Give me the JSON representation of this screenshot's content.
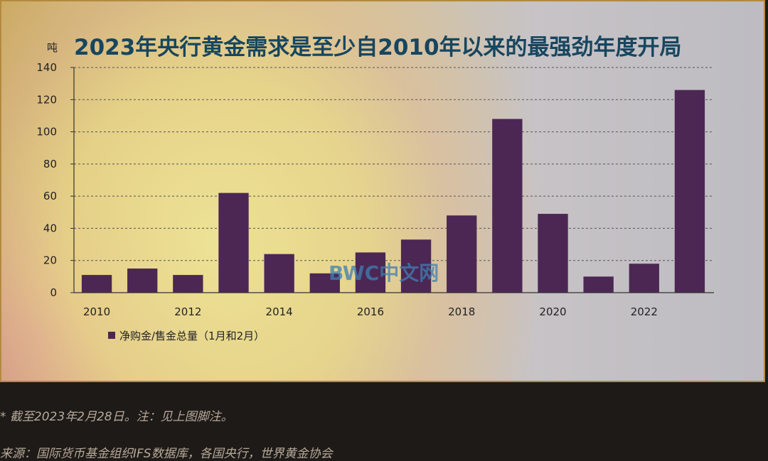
{
  "colors": {
    "bar": "#4c2754",
    "grid": "#555555",
    "title": "#17465f",
    "footnote": "#b7a99a"
  },
  "chart_data": {
    "type": "bar",
    "title": "2023年央行黄金需求是至少自2010年以来的最强劲年度开局",
    "ylabel": "吨",
    "xlabel": "",
    "ylim": [
      0,
      140
    ],
    "yticks": [
      0,
      20,
      40,
      60,
      80,
      100,
      120,
      140
    ],
    "categories": [
      "2010",
      "2011",
      "2012",
      "2013",
      "2014",
      "2015",
      "2016",
      "2017",
      "2018",
      "2019",
      "2020",
      "2021",
      "2022",
      "2023"
    ],
    "xtick_labels": [
      "2010",
      "2012",
      "2014",
      "2016",
      "2018",
      "2020",
      "2022"
    ],
    "series": [
      {
        "name": "净购金/售金总量（1月和2月）",
        "values": [
          11,
          15,
          11,
          62,
          24,
          12,
          25,
          33,
          48,
          108,
          49,
          10,
          18,
          126
        ]
      }
    ],
    "legend_position": "bottom-left",
    "grid": "horizontal-dashed"
  },
  "watermark": "BWC中文网",
  "footnotes": {
    "note": "* 截至2023年2月28日。注：见上图脚注。",
    "source": "来源：国际货币基金组织IFS数据库，各国央行，世界黄金协会"
  }
}
